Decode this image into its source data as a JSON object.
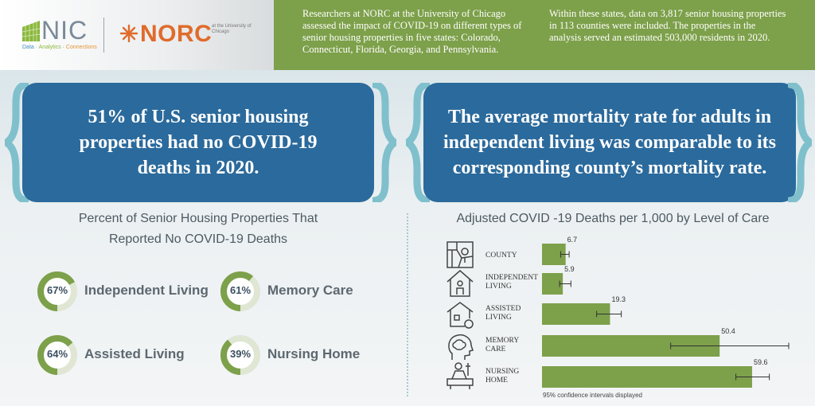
{
  "header": {
    "nic_logo_text": "NIC",
    "nic_tagline": [
      "Data",
      "Analytics",
      "Connections"
    ],
    "norc_logo_text": "NORC",
    "norc_sub": "at the University of Chicago",
    "intro_left": "Researchers at NORC at the University of Chicago assessed the impact of COVID-19 on different types of senior housing properties in five states: Colorado, Connecticut, Florida, Georgia, and Pennsylvania.",
    "intro_right": "Within these states, data on 3,817 senior housing properties in 113 counties were included. The properties in the analysis served an estimated 503,000 residents in 2020."
  },
  "stats": {
    "left": "51% of U.S. senior housing properties had no COVID-19 deaths in 2020.",
    "right": "The average mortality rate for adults in independent living was comparable to its corresponding county’s mortality rate."
  },
  "donuts": {
    "title_line1": "Percent of Senior Housing Properties That",
    "title_line2": "Reported  No COVID-19 Deaths",
    "items": [
      {
        "pct_label": "67%",
        "value": 67,
        "label": "Independent Living"
      },
      {
        "pct_label": "61%",
        "value": 61,
        "label": "Memory Care"
      },
      {
        "pct_label": "64%",
        "value": 64,
        "label": "Assisted Living"
      },
      {
        "pct_label": "39%",
        "value": 39,
        "label": "Nursing Home"
      }
    ]
  },
  "chart_data": {
    "type": "bar",
    "title": "Adjusted COVID -19 Deaths per 1,000 by Level of Care",
    "orientation": "horizontal",
    "categories": [
      "COUNTY",
      "INDEPENDENT LIVING",
      "ASSISTED LIVING",
      "MEMORY CARE",
      "NURSING HOME"
    ],
    "category_lines": [
      [
        "COUNTY"
      ],
      [
        "INDEPENDENT",
        "LIVING"
      ],
      [
        "ASSISTED",
        "LIVING"
      ],
      [
        "MEMORY",
        "CARE"
      ],
      [
        "NURSING",
        "HOME"
      ]
    ],
    "values": [
      6.7,
      5.9,
      19.3,
      50.4,
      59.6
    ],
    "ci_low": [
      5.3,
      5.0,
      15.5,
      36.5,
      55.0
    ],
    "ci_high": [
      7.7,
      8.2,
      22.5,
      70.0,
      64.5
    ],
    "xlim": [
      0,
      70
    ],
    "note": "95% confidence intervals displayed",
    "icons": [
      "map-icon",
      "house-person-icon",
      "house-wheelchair-icon",
      "head-brain-icon",
      "patient-bed-icon"
    ]
  },
  "colors": {
    "header_green": "#7da04a",
    "stat_blue": "#2b6a9c",
    "brace_teal": "#7fc0cc",
    "donut_green": "#7da04a",
    "donut_track": "#dfe6d3",
    "bar_green": "#7da04a",
    "norc_orange": "#e06b2b"
  }
}
